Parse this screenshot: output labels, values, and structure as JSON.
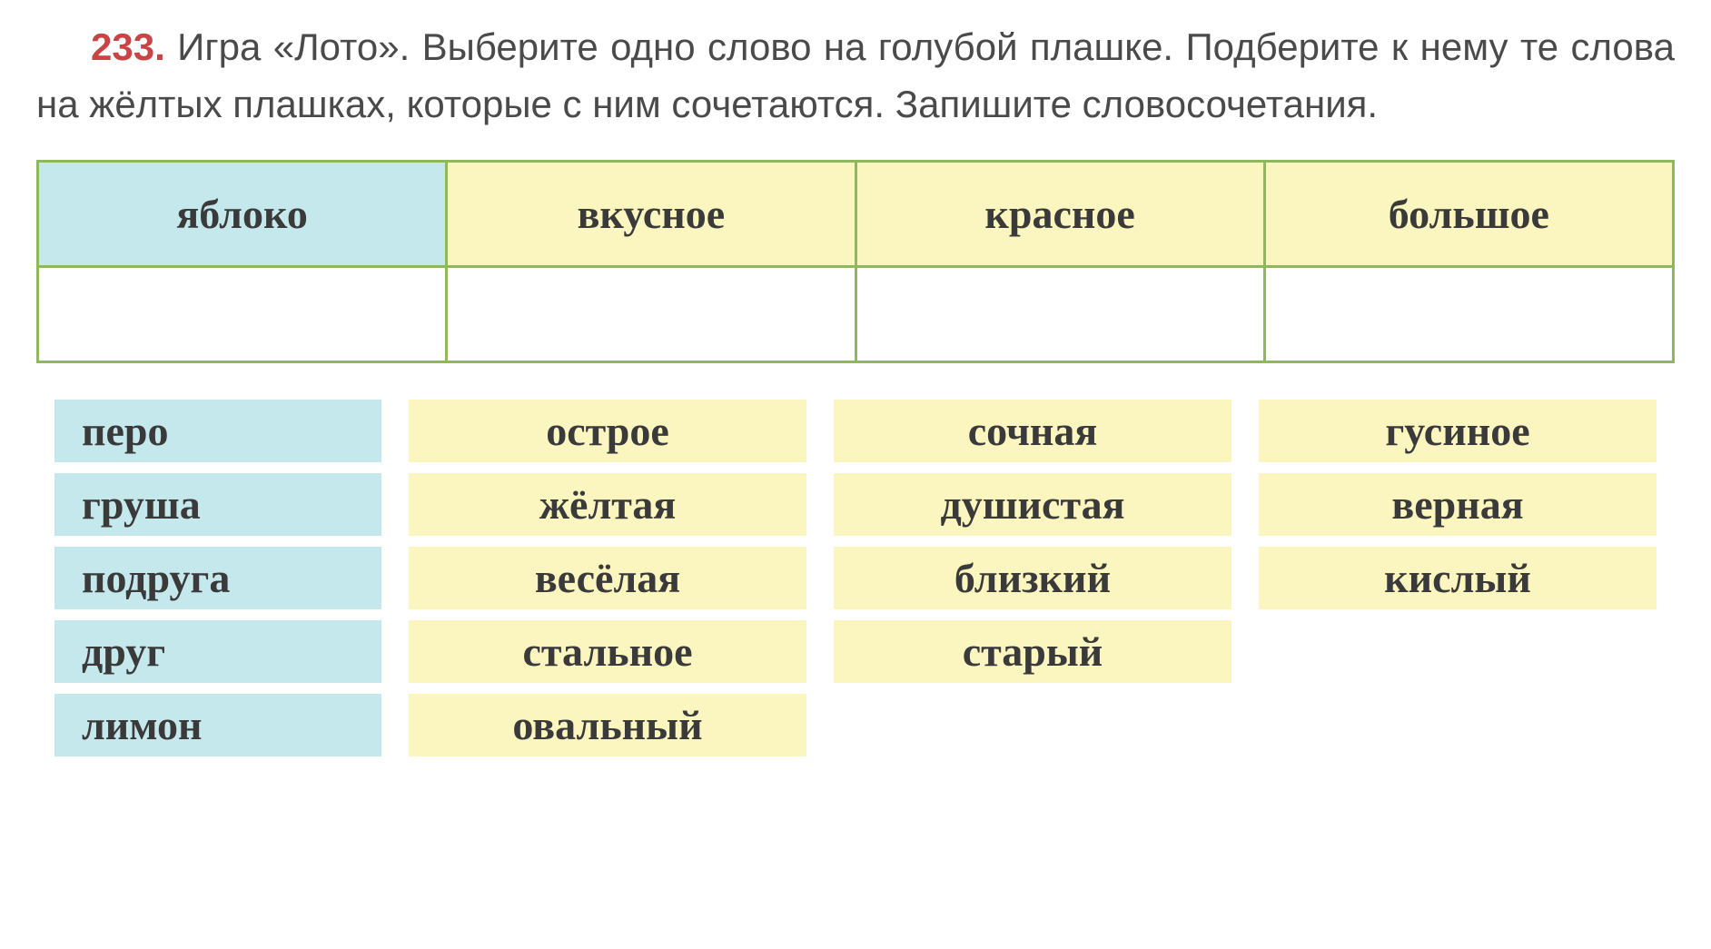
{
  "exercise": {
    "number": "233.",
    "text_part1": " Игра «Лото». Выберите одно слово на голубой плашке. Подберите к нему те слова на жёлтых плашках, которые с ним сочетаются. Запишите словосочетания."
  },
  "main_table": {
    "header": {
      "blue_cell": "яблоко",
      "yellow_cells": [
        "вкусное",
        "красное",
        "большое"
      ]
    },
    "colors": {
      "blue_bg": "#c5e8ed",
      "yellow_bg": "#fbf5bf",
      "border": "#8fb85e"
    }
  },
  "loto_rows": [
    {
      "blue": "перо",
      "yellows": [
        "острое",
        "сочная",
        "гусиное"
      ]
    },
    {
      "blue": "груша",
      "yellows": [
        "жёлтая",
        "душистая",
        "верная"
      ]
    },
    {
      "blue": "подруга",
      "yellows": [
        "весёлая",
        "близкий",
        "кислый"
      ]
    },
    {
      "blue": "друг",
      "yellows": [
        "стальное",
        "старый",
        ""
      ]
    },
    {
      "blue": "лимон",
      "yellows": [
        "овальный",
        "",
        ""
      ]
    }
  ],
  "styling": {
    "exercise_number_color": "#c94545",
    "text_color": "#4a4a4a",
    "cell_text_color": "#3a3a3a",
    "body_bg": "#ffffff",
    "title_fontsize": 42,
    "cell_fontsize": 46
  }
}
